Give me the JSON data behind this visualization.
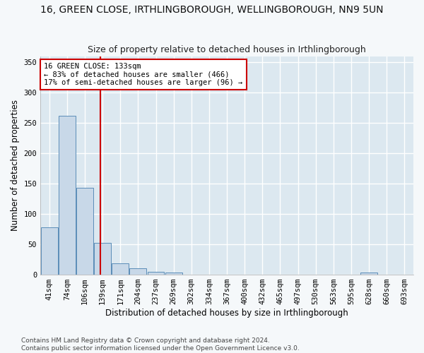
{
  "title": "16, GREEN CLOSE, IRTHLINGBOROUGH, WELLINGBOROUGH, NN9 5UN",
  "subtitle": "Size of property relative to detached houses in Irthlingborough",
  "xlabel": "Distribution of detached houses by size in Irthlingborough",
  "ylabel": "Number of detached properties",
  "bar_color": "#c8d8e8",
  "bar_edge_color": "#5b8db8",
  "background_color": "#dce8f0",
  "fig_background_color": "#f5f8fa",
  "grid_color": "#ffffff",
  "categories": [
    "41sqm",
    "74sqm",
    "106sqm",
    "139sqm",
    "171sqm",
    "204sqm",
    "237sqm",
    "269sqm",
    "302sqm",
    "334sqm",
    "367sqm",
    "400sqm",
    "432sqm",
    "465sqm",
    "497sqm",
    "530sqm",
    "563sqm",
    "595sqm",
    "628sqm",
    "660sqm",
    "693sqm"
  ],
  "values": [
    78,
    262,
    143,
    53,
    19,
    10,
    5,
    4,
    0,
    0,
    0,
    0,
    0,
    0,
    0,
    0,
    0,
    0,
    4,
    0,
    0
  ],
  "ylim": [
    0,
    360
  ],
  "yticks": [
    0,
    50,
    100,
    150,
    200,
    250,
    300,
    350
  ],
  "red_line_x": 2.88,
  "annotation_text": "16 GREEN CLOSE: 133sqm\n← 83% of detached houses are smaller (466)\n17% of semi-detached houses are larger (96) →",
  "annotation_box_color": "#ffffff",
  "annotation_border_color": "#cc0000",
  "footer_text": "Contains HM Land Registry data © Crown copyright and database right 2024.\nContains public sector information licensed under the Open Government Licence v3.0.",
  "title_fontsize": 10,
  "subtitle_fontsize": 9,
  "xlabel_fontsize": 8.5,
  "ylabel_fontsize": 8.5,
  "tick_fontsize": 7.5,
  "annotation_fontsize": 7.5,
  "footer_fontsize": 6.5
}
